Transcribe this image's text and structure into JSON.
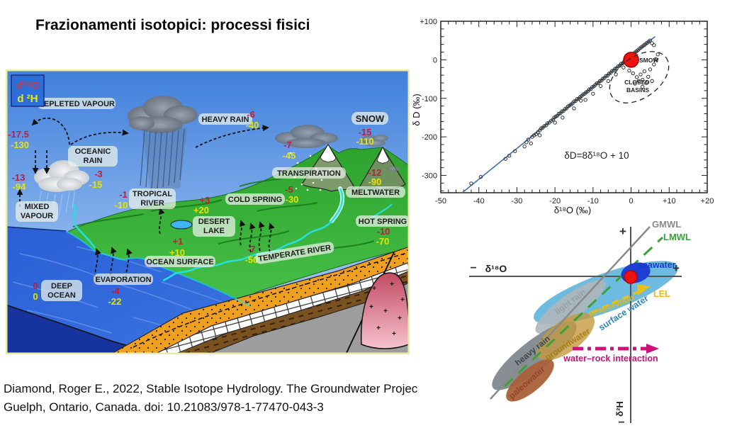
{
  "slide": {
    "title": "Frazionamenti isotopici: processi fisici",
    "citation": {
      "line1": "Diamond, Roger E., 2022, Stable Isotope Hydrology. The Groundwater Projec",
      "line2": "Guelph, Ontario, Canada. doi: 10.21083/978-1-77470-043-3"
    }
  },
  "colors": {
    "d18o_value": "#b52240",
    "d2h_value": "#e8e400",
    "mwl_line": "#4a7ab0",
    "smow_dot": "#ee1111",
    "gmwl": "#8a8a8a",
    "lmwl": "#3aa13a",
    "lel": "#e2ba18",
    "water_rock": "#cc1177"
  },
  "watercycle": {
    "legend": {
      "d18o": "d¹⁸O",
      "d2h": "d ²H"
    },
    "depleted_vapour": {
      "label": "DEPLETED VAPOUR",
      "d18O": "-17.5",
      "d2H": "-130"
    },
    "mixed_vapour": {
      "l1": "MIXED",
      "l2": "VAPOUR",
      "d18O": "-13",
      "d2H": "-94"
    },
    "oceanic_rain": {
      "l1": "OCEANIC",
      "l2": "RAIN",
      "d18O": "-3",
      "d2H": "-15"
    },
    "heavy_rain": {
      "label": "HEAVY RAIN",
      "d18O": "-6",
      "d2H": "-40"
    },
    "snow": {
      "label": "SNOW",
      "d18O": "-15",
      "d2H": "-110"
    },
    "transpiration": {
      "label": "TRANSPIRATION",
      "d18O": "-7",
      "d2H": "-45"
    },
    "meltwater": {
      "label": "MELTWATER",
      "d18O": "-12",
      "d2H": "-90"
    },
    "cold_spring": {
      "label": "COLD SPRING",
      "d18O": "-5",
      "d2H": "-30"
    },
    "tropical_river": {
      "l1": "TROPICAL",
      "l2": "RIVER",
      "d18O": "-1",
      "d2H": "-10"
    },
    "desert_lake": {
      "l1": "DESERT",
      "l2": "LAKE",
      "d18O": "+3",
      "d2H": "+20"
    },
    "hot_spring": {
      "label": "HOT SPRING",
      "d18O": "-10",
      "d2H": "-70"
    },
    "temperate_river": {
      "label": "TEMPERATE RIVER",
      "d18O": "-7",
      "d2H": "-50"
    },
    "ocean_surface": {
      "label": "OCEAN SURFACE",
      "d18O": "+1",
      "d2H": "+10"
    },
    "evaporation": {
      "label": "EVAPORATION",
      "d18O": "-4",
      "d2H": "-22"
    },
    "deep_ocean": {
      "l1": "DEEP",
      "l2": "OCEAN",
      "d18O": "0",
      "d2H": "0"
    }
  },
  "scatter": {
    "xlabel": "δ¹⁸O (‰)",
    "ylabel": "δ D (‰)",
    "equation": "δD=8δ¹⁸O + 10",
    "smow_label": "SMOW",
    "closed_basins_l1": "CLOSED",
    "closed_basins_l2": "BASINS",
    "x_ticks": [
      "-50",
      "-40",
      "-30",
      "-20",
      "-10",
      "0",
      "+10",
      "+20"
    ],
    "y_ticks": [
      "+100",
      "0",
      "-100",
      "-200",
      "-300"
    ]
  },
  "schematic": {
    "xlabel": "δ¹⁸O",
    "ylabel": "δ²H",
    "plus": "+",
    "minus": "−",
    "gmwl": "GMWL",
    "lmwl": "LMWL",
    "lel": "LEL",
    "labels": {
      "seawater": "seawater",
      "surface_water": "surface water",
      "light_rain": "light rain",
      "heavy_rain": "heavy rain",
      "groundwater": "groundwater",
      "paleowater": "paleowater",
      "evaporation": "evaporation",
      "water_rock": "water–rock interaction"
    }
  },
  "chart_data": {
    "type": "scatter",
    "title": "Global Meteoric Water Line with SMOW and closed basins",
    "xlabel": "δ¹⁸O (‰)",
    "ylabel": "δ D (‰)",
    "xlim": [
      -50,
      20
    ],
    "ylim": [
      -345,
      100
    ],
    "x_major_ticks": [
      -50,
      -40,
      -30,
      -20,
      -10,
      0,
      10,
      20
    ],
    "y_major_ticks": [
      100,
      0,
      -100,
      -200,
      -300
    ],
    "x_minor_step": 2,
    "y_minor_step": 20,
    "grid": false,
    "line": {
      "label": "δD=8δ¹⁸O + 10",
      "slope": 8,
      "intercept": 10,
      "x_start": -44.3,
      "x_end": 6.3
    },
    "smow": {
      "x": 0,
      "y": 0,
      "label": "SMOW"
    },
    "points": [
      [
        -42,
        -321
      ],
      [
        -39.5,
        -304
      ],
      [
        -33,
        -257
      ],
      [
        -32,
        -249
      ],
      [
        -30.5,
        -237
      ],
      [
        -27.5,
        -214
      ],
      [
        -27,
        -207
      ],
      [
        -26.3,
        -217
      ],
      [
        -26,
        -200
      ],
      [
        -25.5,
        -196
      ],
      [
        -25,
        -193
      ],
      [
        -24.5,
        -188
      ],
      [
        -24,
        -183
      ],
      [
        -23.6,
        -178
      ],
      [
        -23.2,
        -176
      ],
      [
        -22.8,
        -172
      ],
      [
        -22.3,
        -170
      ],
      [
        -22,
        -165
      ],
      [
        -21.5,
        -163
      ],
      [
        -21,
        -158
      ],
      [
        -20.5,
        -155
      ],
      [
        -20.2,
        -150
      ],
      [
        -19.8,
        -147
      ],
      [
        -19.4,
        -145
      ],
      [
        -19,
        -140
      ],
      [
        -18.6,
        -139
      ],
      [
        -18.2,
        -134
      ],
      [
        -17.8,
        -133
      ],
      [
        -17.4,
        -128
      ],
      [
        -17,
        -126
      ],
      [
        -16.6,
        -121
      ],
      [
        -16.2,
        -119
      ],
      [
        -15.8,
        -116
      ],
      [
        -15.4,
        -113
      ],
      [
        -15,
        -108
      ],
      [
        -14.6,
        -107
      ],
      [
        -14.2,
        -102
      ],
      [
        -13.8,
        -101
      ],
      [
        -13.4,
        -97
      ],
      [
        -13.2,
        -106
      ],
      [
        -13,
        -94
      ],
      [
        -12.6,
        -90
      ],
      [
        -12.2,
        -88
      ],
      [
        -11.8,
        -84
      ],
      [
        -11.4,
        -82
      ],
      [
        -11,
        -77
      ],
      [
        -10.6,
        -76
      ],
      [
        -10.2,
        -71
      ],
      [
        -9.8,
        -69
      ],
      [
        -9.4,
        -65
      ],
      [
        -9,
        -61
      ],
      [
        -8.6,
        -60
      ],
      [
        -8.2,
        -55
      ],
      [
        -7.8,
        -54
      ],
      [
        -7.4,
        -49
      ],
      [
        -7,
        -47
      ],
      [
        -6.6,
        -42
      ],
      [
        -6.2,
        -41
      ],
      [
        -5.8,
        -36
      ],
      [
        -5.4,
        -34
      ],
      [
        -5,
        -29
      ],
      [
        -4.6,
        -28
      ],
      [
        -4.2,
        -23
      ],
      [
        -3.8,
        -22
      ],
      [
        -3.4,
        -17
      ],
      [
        -3,
        -15
      ],
      [
        -2.6,
        -10
      ],
      [
        -2.2,
        -9
      ],
      [
        -1.8,
        -4
      ],
      [
        -1.4,
        -2
      ],
      [
        -1,
        3
      ],
      [
        -0.6,
        5
      ],
      [
        -0.2,
        9
      ],
      [
        0.2,
        12
      ],
      [
        0.6,
        16
      ],
      [
        1,
        19
      ],
      [
        1.4,
        22
      ],
      [
        1.8,
        25
      ],
      [
        2.2,
        29
      ],
      [
        2.6,
        32
      ],
      [
        3,
        35
      ],
      [
        3.4,
        38
      ],
      [
        3.8,
        41
      ],
      [
        4.2,
        44
      ],
      [
        4.6,
        47
      ],
      [
        5,
        50
      ],
      [
        5.5,
        43
      ],
      [
        6,
        38
      ],
      [
        -2,
        -20
      ],
      [
        -4,
        -38
      ],
      [
        -6,
        -55
      ],
      [
        -8,
        -68
      ],
      [
        -10,
        -88
      ],
      [
        -12,
        -104
      ],
      [
        -15,
        -126
      ],
      [
        -18,
        -150
      ],
      [
        -20,
        -163
      ],
      [
        -24,
        -196
      ],
      [
        -28,
        -225
      ]
    ],
    "closed_basins": {
      "label": "CLOSED BASINS",
      "points": [
        [
          -0.5,
          -28
        ],
        [
          0.5,
          -35
        ],
        [
          1.5,
          -45
        ],
        [
          2,
          -55
        ],
        [
          2.5,
          -38
        ],
        [
          3,
          -52
        ],
        [
          3.5,
          -30
        ],
        [
          4,
          -60
        ],
        [
          4.5,
          -44
        ],
        [
          5,
          -25
        ],
        [
          5.5,
          -55
        ],
        [
          6,
          -12
        ],
        [
          6.5,
          2
        ],
        [
          7,
          14
        ],
        [
          3,
          -70
        ],
        [
          1,
          -62
        ]
      ]
    }
  }
}
